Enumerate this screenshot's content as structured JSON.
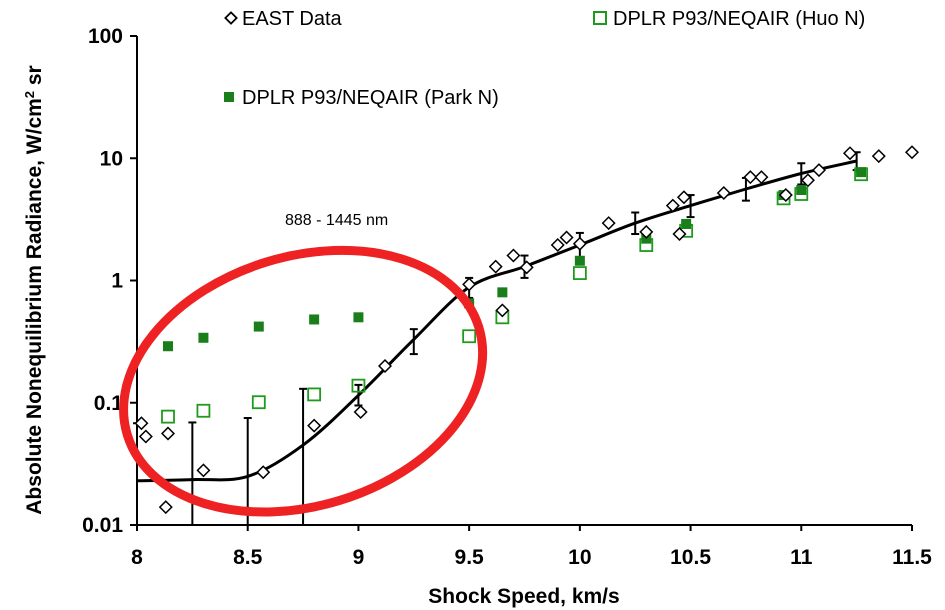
{
  "chart_data": {
    "type": "scatter",
    "xlabel": "Shock Speed, km/s",
    "ylabel_main": "Absolute Nonequilibrium Radiance, W/cm",
    "ylabel_sup": "2",
    "ylabel_tail": " sr",
    "xlim": [
      8,
      11.5
    ],
    "ylim": [
      0.01,
      100
    ],
    "yscale": "log",
    "x_ticks": [
      "8",
      "8.5",
      "9",
      "9.5",
      "10",
      "10.5",
      "11",
      "11.5"
    ],
    "y_ticks": [
      "0.01",
      "0.1",
      "1",
      "10",
      "100"
    ],
    "annotation": "888 - 1445 nm",
    "legend_position": "top",
    "series": [
      {
        "name": "EAST Data",
        "marker": "diamond-open",
        "color": "#000000",
        "points": [
          [
            8.02,
            0.068
          ],
          [
            8.04,
            0.053
          ],
          [
            8.13,
            0.014
          ],
          [
            8.14,
            0.056
          ],
          [
            8.3,
            0.028
          ],
          [
            8.57,
            0.027
          ],
          [
            8.8,
            0.065
          ],
          [
            9.01,
            0.084
          ],
          [
            9.12,
            0.2
          ],
          [
            9.5,
            0.93
          ],
          [
            9.62,
            1.3
          ],
          [
            9.65,
            0.57
          ],
          [
            9.7,
            1.6
          ],
          [
            9.76,
            1.28
          ],
          [
            9.9,
            1.95
          ],
          [
            9.94,
            2.25
          ],
          [
            10.0,
            2.0
          ],
          [
            10.13,
            2.95
          ],
          [
            10.3,
            2.5
          ],
          [
            10.42,
            4.1
          ],
          [
            10.45,
            2.4
          ],
          [
            10.47,
            4.8
          ],
          [
            10.65,
            5.2
          ],
          [
            10.77,
            7.0
          ],
          [
            10.82,
            7.0
          ],
          [
            10.93,
            5.0
          ],
          [
            11.03,
            6.6
          ],
          [
            11.08,
            8.0
          ],
          [
            11.22,
            11.0
          ],
          [
            11.35,
            10.4
          ],
          [
            11.5,
            11.2
          ]
        ]
      },
      {
        "name": "DPLR P93/NEQAIR (Huo N)",
        "marker": "square-open",
        "color": "#1e9a1e",
        "points": [
          [
            8.14,
            0.077
          ],
          [
            8.3,
            0.086
          ],
          [
            8.55,
            0.101
          ],
          [
            8.8,
            0.117
          ],
          [
            9.0,
            0.138
          ],
          [
            9.5,
            0.35
          ],
          [
            9.65,
            0.5
          ],
          [
            10.0,
            1.15
          ],
          [
            10.3,
            1.95
          ],
          [
            10.48,
            2.55
          ],
          [
            10.92,
            4.7
          ],
          [
            11.0,
            5.1
          ],
          [
            11.27,
            7.4
          ]
        ]
      },
      {
        "name": "DPLR P93/NEQAIR (Park N)",
        "marker": "square-filled",
        "color": "#1a7f1a",
        "points": [
          [
            8.14,
            0.29
          ],
          [
            8.3,
            0.34
          ],
          [
            8.55,
            0.42
          ],
          [
            8.8,
            0.48
          ],
          [
            9.0,
            0.5
          ],
          [
            9.5,
            0.65
          ],
          [
            9.65,
            0.8
          ],
          [
            10.0,
            1.45
          ],
          [
            10.3,
            2.2
          ],
          [
            10.48,
            2.9
          ],
          [
            10.92,
            5.0
          ],
          [
            11.0,
            5.5
          ],
          [
            11.27,
            7.7
          ]
        ]
      }
    ],
    "fit_curve": [
      [
        8.0,
        0.023
      ],
      [
        8.25,
        0.0235
      ],
      [
        8.5,
        0.025
      ],
      [
        8.75,
        0.045
      ],
      [
        9.0,
        0.115
      ],
      [
        9.25,
        0.33
      ],
      [
        9.5,
        0.88
      ],
      [
        9.75,
        1.3
      ],
      [
        10.0,
        1.95
      ],
      [
        10.25,
        2.95
      ],
      [
        10.5,
        4.1
      ],
      [
        10.75,
        5.6
      ],
      [
        11.0,
        7.5
      ],
      [
        11.25,
        9.5
      ]
    ],
    "error_bars": [
      [
        8.0,
        0.01,
        0.068
      ],
      [
        8.25,
        0.01,
        0.069
      ],
      [
        8.5,
        0.01,
        0.075
      ],
      [
        8.75,
        0.01,
        0.13
      ],
      [
        9.0,
        0.095,
        0.14
      ],
      [
        9.25,
        0.25,
        0.4
      ],
      [
        9.5,
        0.72,
        1.05
      ],
      [
        9.75,
        1.05,
        1.6
      ],
      [
        10.0,
        1.55,
        2.45
      ],
      [
        10.25,
        2.4,
        3.6
      ],
      [
        10.5,
        3.3,
        5.0
      ],
      [
        10.75,
        4.5,
        6.9
      ],
      [
        11.0,
        6.1,
        9.1
      ],
      [
        11.25,
        8.0,
        11.2
      ]
    ],
    "highlight": {
      "shape": "ellipse",
      "color": "#ee2222",
      "center": [
        8.75,
        0.15
      ],
      "x_halfwidth": 0.83,
      "y_decades": 1.02
    }
  }
}
